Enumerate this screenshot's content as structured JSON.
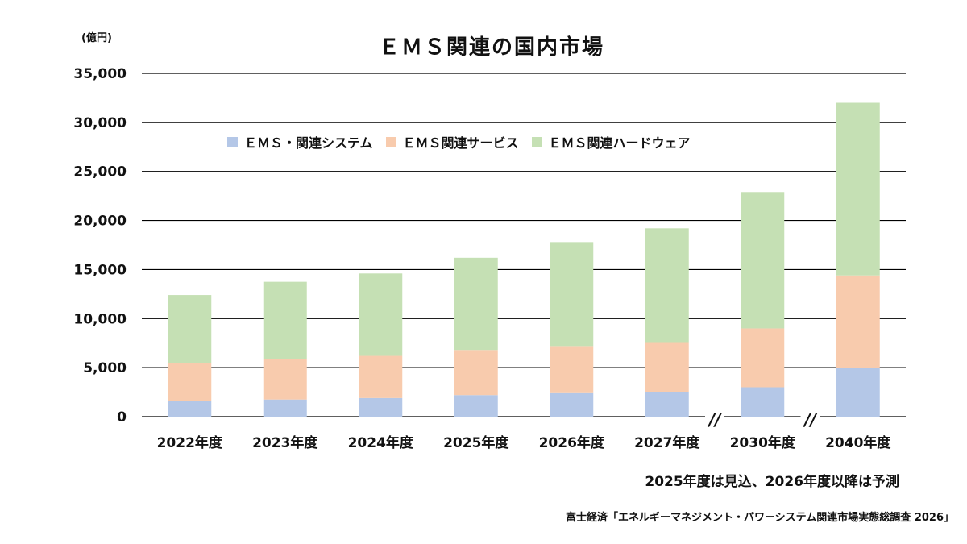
{
  "unit_label": "(億円)",
  "note": "2025年度は見込、2026年度以降は予測",
  "source": "富士経済「エネルギーマネジメント・パワーシステム関連市場実態総調査 2026」",
  "chart_data": {
    "type": "bar",
    "stacked": true,
    "title": "ＥＭＳ関連の国内市場",
    "categories": [
      "2022年度",
      "2023年度",
      "2024年度",
      "2025年度",
      "2026年度",
      "2027年度",
      "2030年度",
      "2040年度"
    ],
    "axis_breaks_before": [
      6,
      7
    ],
    "axis_break_symbol": "//",
    "ylim": [
      0,
      35000
    ],
    "yticks": [
      "0",
      "5,000",
      "10,000",
      "15,000",
      "20,000",
      "25,000",
      "30,000",
      "35,000"
    ],
    "ytick_values": [
      0,
      5000,
      10000,
      15000,
      20000,
      25000,
      30000,
      35000
    ],
    "grid": true,
    "legend_position": "top-left",
    "series": [
      {
        "name": "ＥＭＳ・関連システム",
        "color": "#b4c7e7",
        "values": [
          1600,
          1750,
          1900,
          2200,
          2400,
          2500,
          3000,
          5000
        ]
      },
      {
        "name": "ＥＭＳ関連サービス",
        "color": "#f8cbad",
        "values": [
          3900,
          4100,
          4300,
          4600,
          4800,
          5100,
          6000,
          9400
        ]
      },
      {
        "name": "ＥＭＳ関連ハードウェア",
        "color": "#c5e0b4",
        "values": [
          6900,
          7900,
          8400,
          9400,
          10600,
          11600,
          13900,
          17600
        ]
      }
    ]
  }
}
